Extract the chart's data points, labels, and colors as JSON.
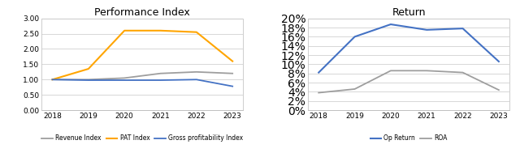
{
  "years": [
    2018,
    2019,
    2020,
    2021,
    2022,
    2023
  ],
  "chart1_title": "Performance Index",
  "revenue_index": [
    1.0,
    1.0,
    1.05,
    1.2,
    1.25,
    1.2
  ],
  "pat_index": [
    1.0,
    1.35,
    2.6,
    2.6,
    2.55,
    1.6
  ],
  "gross_index": [
    1.0,
    0.98,
    0.98,
    0.98,
    1.0,
    0.78
  ],
  "revenue_color": "#9E9E9E",
  "pat_color": "#FFA500",
  "gross_color": "#4472C4",
  "ylim1": [
    0.0,
    3.0
  ],
  "yticks1": [
    0.0,
    0.5,
    1.0,
    1.5,
    2.0,
    2.5,
    3.0
  ],
  "chart2_title": "Return",
  "op_return": [
    0.082,
    0.16,
    0.187,
    0.175,
    0.178,
    0.106
  ],
  "roa": [
    0.038,
    0.046,
    0.086,
    0.086,
    0.082,
    0.044
  ],
  "op_return_color": "#4472C4",
  "roa_color": "#9E9E9E",
  "ylim2": [
    0.0,
    0.2
  ],
  "yticks2": [
    0.0,
    0.02,
    0.04,
    0.06,
    0.08,
    0.1,
    0.12,
    0.14,
    0.16,
    0.18,
    0.2
  ],
  "legend1_labels": [
    "Revenue Index",
    "PAT Index",
    "Gross profitability Index"
  ],
  "legend2_labels": [
    "Op Return",
    "ROA"
  ],
  "bg_color": "#ffffff",
  "plot_bg_color": "#ffffff",
  "grid_color": "#C8C8C8",
  "font_size": 6.5,
  "title_font_size": 9,
  "border_color": "#BBBBBB"
}
